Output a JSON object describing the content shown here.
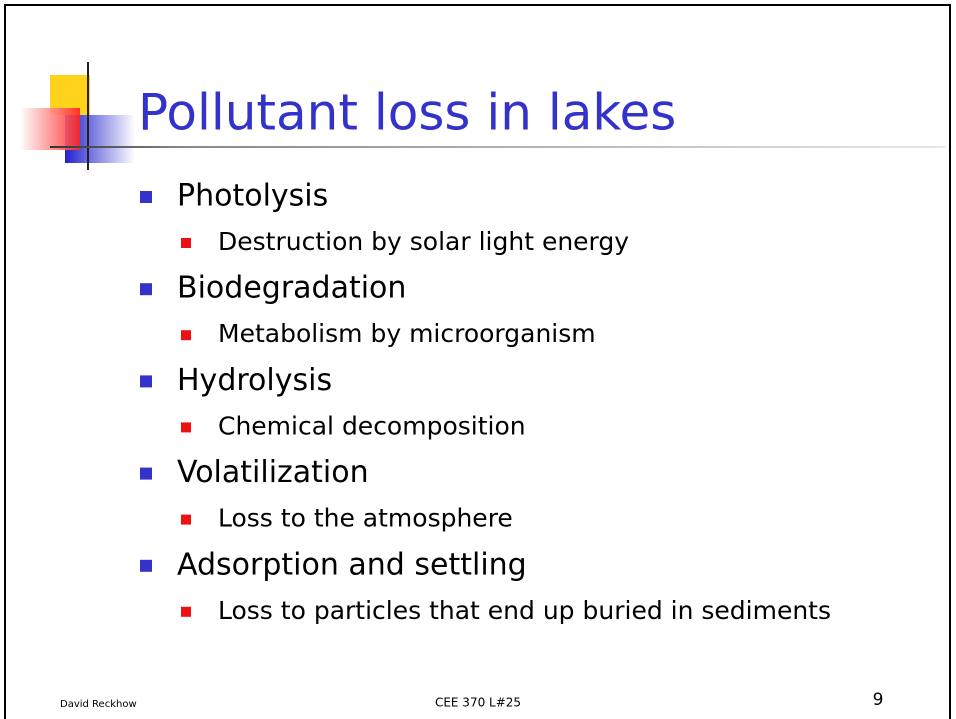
{
  "slide": {
    "title": "Pollutant loss in lakes",
    "items": [
      {
        "text": "Photolysis",
        "sub": "Destruction by solar light energy"
      },
      {
        "text": "Biodegradation",
        "sub": "Metabolism by microorganism"
      },
      {
        "text": "Hydrolysis",
        "sub": "Chemical decomposition"
      },
      {
        "text": "Volatilization",
        "sub": "Loss to the atmosphere"
      },
      {
        "text": "Adsorption and settling",
        "sub": "Loss to particles that end up buried in sediments"
      }
    ],
    "footer": {
      "author": "David Reckhow",
      "course": "CEE 370 L#25",
      "page": "9"
    }
  }
}
